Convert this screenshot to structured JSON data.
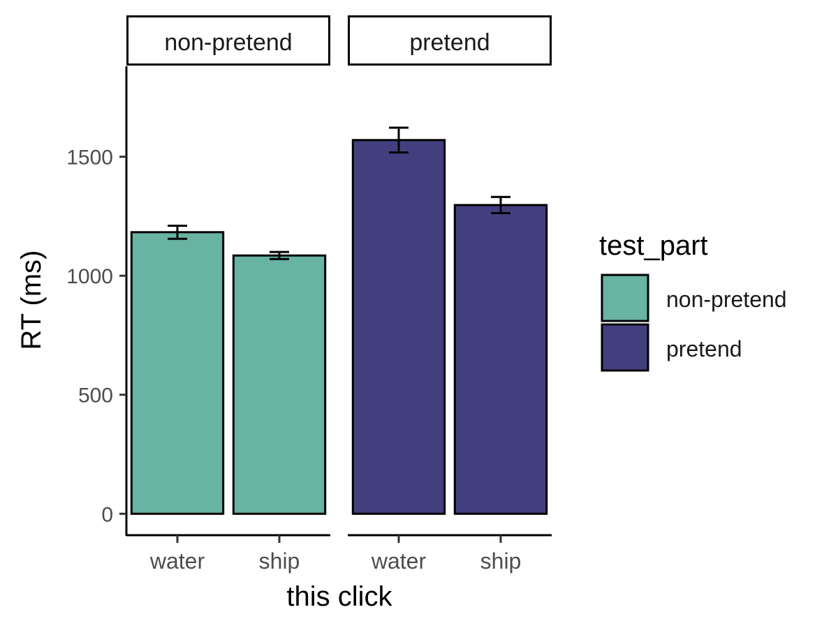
{
  "chart_data": {
    "type": "bar",
    "facet_variable": "test_part",
    "facets": [
      "non-pretend",
      "pretend"
    ],
    "categories": [
      "water",
      "ship"
    ],
    "series": [
      {
        "name": "non-pretend",
        "facet": "non-pretend",
        "color": "#69B3A2",
        "values": [
          1183,
          1085
        ],
        "error_low": [
          1155,
          1070
        ],
        "error_high": [
          1210,
          1100
        ]
      },
      {
        "name": "pretend",
        "facet": "pretend",
        "color": "#433F7E",
        "values": [
          1570,
          1297
        ],
        "error_low": [
          1518,
          1263
        ],
        "error_high": [
          1622,
          1331
        ]
      }
    ],
    "xlabel": "this click",
    "ylabel": "RT (ms)",
    "ylim": [
      -90,
      1880
    ],
    "yticks": [
      0,
      500,
      1000,
      1500
    ],
    "legend": {
      "title": "test_part",
      "entries": [
        "non-pretend",
        "pretend"
      ],
      "position": "right"
    },
    "grid": false
  }
}
